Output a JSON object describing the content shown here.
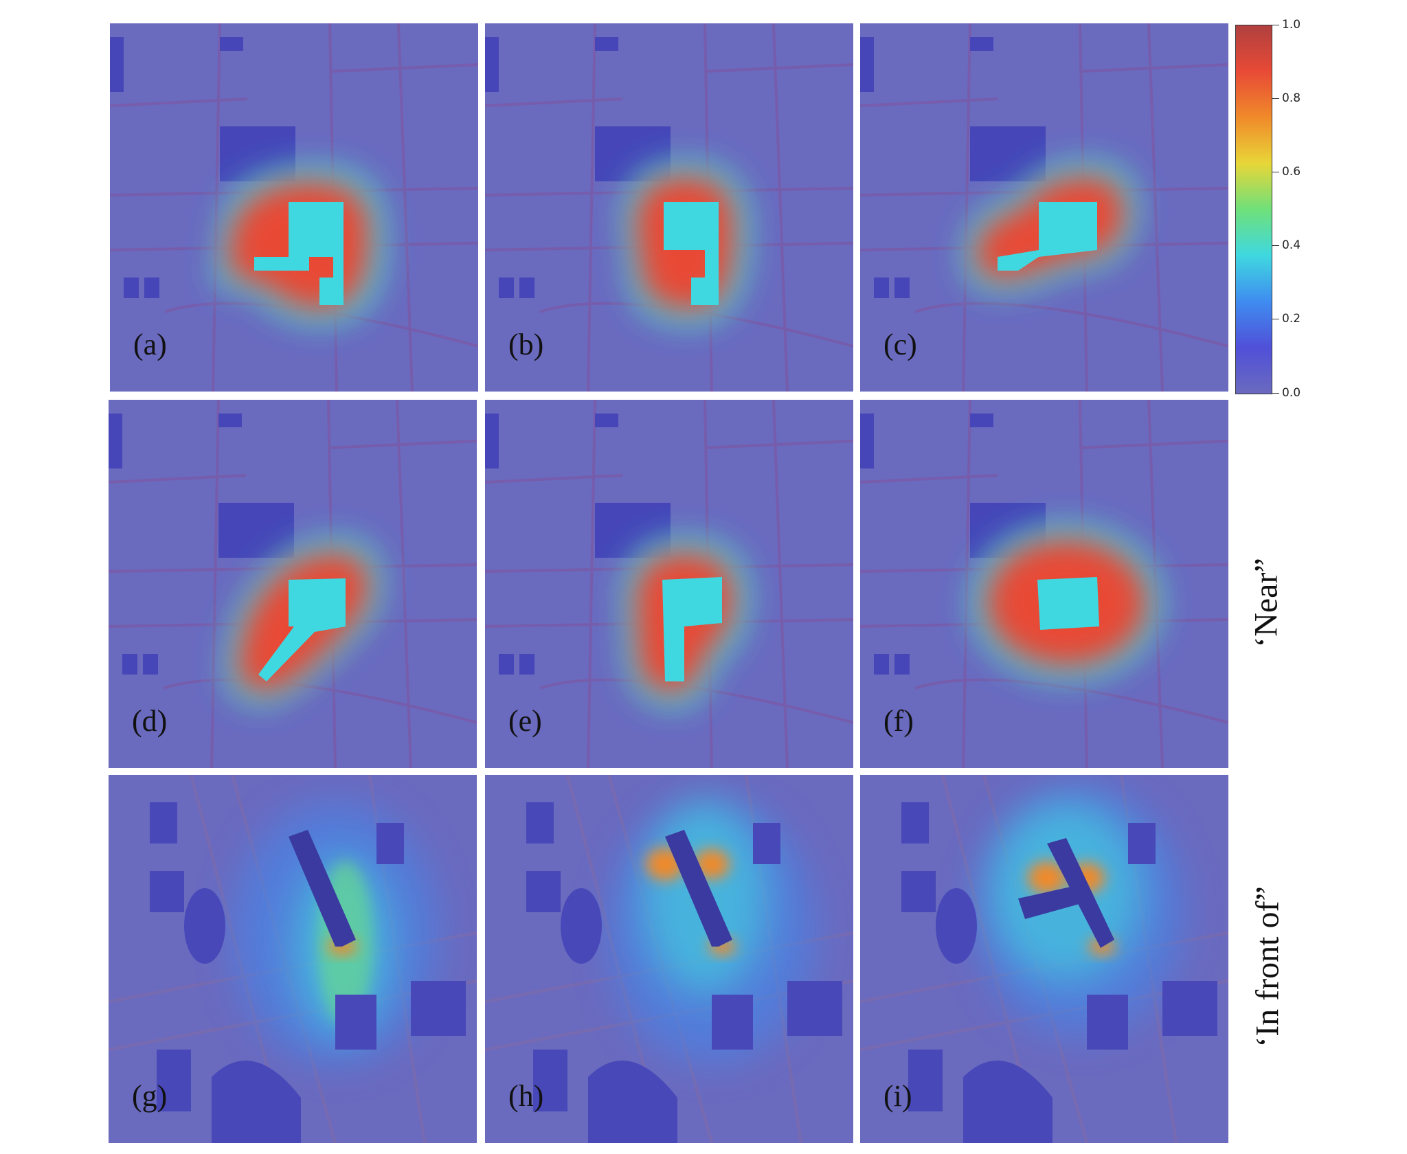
{
  "panels": [
    {
      "label": "(a)",
      "row": 0,
      "col": 0
    },
    {
      "label": "(b)",
      "row": 0,
      "col": 1
    },
    {
      "label": "(c)",
      "row": 0,
      "col": 2
    },
    {
      "label": "(d)",
      "row": 1,
      "col": 0
    },
    {
      "label": "(e)",
      "row": 1,
      "col": 1
    },
    {
      "label": "(f)",
      "row": 1,
      "col": 2
    },
    {
      "label": "(g)",
      "row": 2,
      "col": 0
    },
    {
      "label": "(h)",
      "row": 2,
      "col": 1
    },
    {
      "label": "(i)",
      "row": 2,
      "col": 2
    }
  ],
  "row_labels": {
    "near": "‘Near”",
    "in_front_of": "‘In front of”"
  },
  "colorbar": {
    "ticks": [
      "1.0",
      "0.8",
      "0.6",
      "0.4",
      "0.2",
      "0.0"
    ],
    "colors": [
      "#b0403f",
      "#e84a36",
      "#f08a2a",
      "#e8d638",
      "#6fe07a",
      "#3fd8e0",
      "#3f8cf0",
      "#5050d8",
      "#6a6abf"
    ]
  }
}
